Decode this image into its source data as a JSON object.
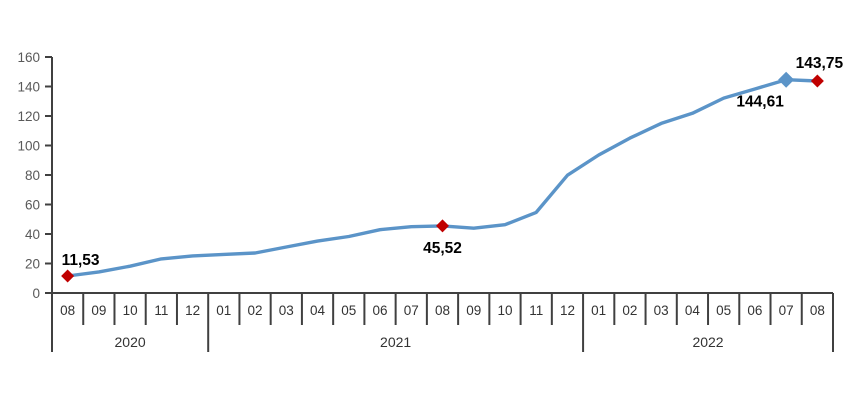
{
  "chart_data": {
    "type": "line",
    "title": "",
    "xlabel": "",
    "ylabel": "",
    "ylim": [
      0,
      160
    ],
    "y_ticks": [
      0,
      20,
      40,
      60,
      80,
      100,
      120,
      140,
      160
    ],
    "grid": false,
    "legend": "none",
    "x": [
      "2020-08",
      "2020-09",
      "2020-10",
      "2020-11",
      "2020-12",
      "2021-01",
      "2021-02",
      "2021-03",
      "2021-04",
      "2021-05",
      "2021-06",
      "2021-07",
      "2021-08",
      "2021-09",
      "2021-10",
      "2021-11",
      "2021-12",
      "2022-01",
      "2022-02",
      "2022-03",
      "2022-04",
      "2022-05",
      "2022-06",
      "2022-07",
      "2022-08"
    ],
    "x_groups": [
      {
        "year": "2020",
        "months": [
          "08",
          "09",
          "10",
          "11",
          "12"
        ]
      },
      {
        "year": "2021",
        "months": [
          "01",
          "02",
          "03",
          "04",
          "05",
          "06",
          "07",
          "08",
          "09",
          "10",
          "11",
          "12"
        ]
      },
      {
        "year": "2022",
        "months": [
          "01",
          "02",
          "03",
          "04",
          "05",
          "06",
          "07",
          "08"
        ]
      }
    ],
    "series": [
      {
        "name": "annual-change-line",
        "values": [
          11.53,
          14.33,
          18.2,
          23.11,
          25.15,
          26.16,
          27.09,
          31.2,
          35.17,
          38.33,
          42.89,
          44.92,
          45.52,
          43.96,
          46.31,
          54.62,
          79.89,
          93.53,
          105.01,
          114.97,
          121.82,
          132.16,
          138.31,
          144.61,
          143.75
        ]
      }
    ],
    "annotations": [
      {
        "index": 0,
        "value": 11.53,
        "label": "11,53",
        "marker": "diamond",
        "marker_color": "#C00000",
        "label_pos": "above-right"
      },
      {
        "index": 12,
        "value": 45.52,
        "label": "45,52",
        "marker": "diamond",
        "marker_color": "#C00000",
        "label_pos": "below"
      },
      {
        "index": 23,
        "value": 144.61,
        "label": "144,61",
        "marker": "diamond",
        "marker_color": "#5B94C8",
        "label_pos": "below-left"
      },
      {
        "index": 24,
        "value": 143.75,
        "label": "143,75",
        "marker": "diamond",
        "marker_color": "#C00000",
        "label_pos": "above"
      }
    ],
    "colors": {
      "line": "#5B94C8",
      "marker_red": "#C00000",
      "marker_blue": "#5B94C8",
      "axis": "#404040",
      "y_tick_label": "#595959",
      "month_label": "#333333",
      "year_label": "#333333",
      "data_label": "#000000",
      "background": "#ffffff"
    }
  }
}
